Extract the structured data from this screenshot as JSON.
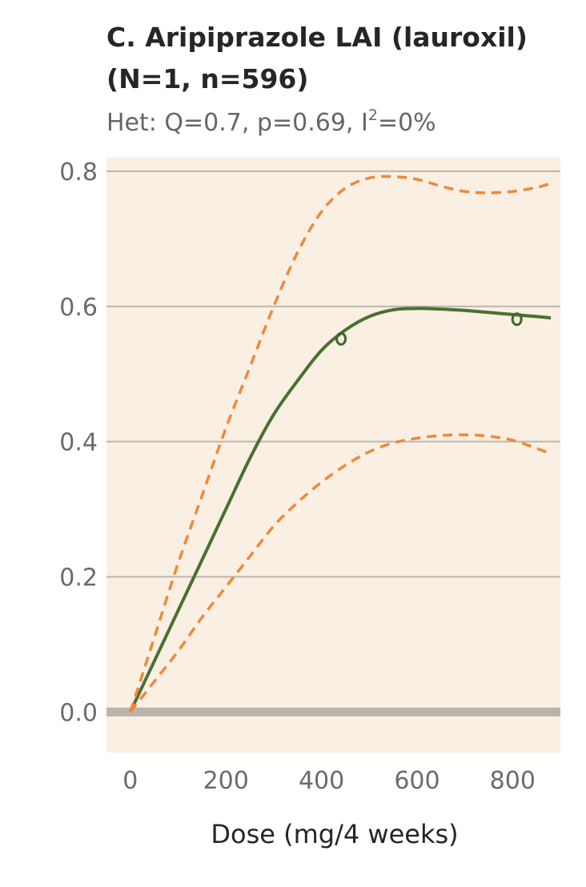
{
  "chart_data": {
    "type": "line",
    "title_line1": "C. Aripiprazole LAI (lauroxil)",
    "title_line2": "(N=1, n=596)",
    "subtitle_prefix": "Het: Q=0.7, p=0.69, I",
    "subtitle_sup": "2",
    "subtitle_suffix": "=0%",
    "xlabel": "Dose (mg/4 weeks)",
    "ylabel": "",
    "xlim": [
      -50,
      900
    ],
    "ylim": [
      -0.06,
      0.82
    ],
    "xticks": [
      0,
      200,
      400,
      600,
      800
    ],
    "yticks": [
      0.0,
      0.2,
      0.4,
      0.6,
      0.8
    ],
    "ytick_labels": [
      "0.0",
      "0.2",
      "0.4",
      "0.6",
      "0.8"
    ],
    "grid": true,
    "colors": {
      "background": "#f9efe3",
      "grid": "#bdb6ad",
      "zero_line": "#bab4ac",
      "estimate": "#4a7030",
      "ci": "#f0883a",
      "points": "#3e6a2c"
    },
    "series": [
      {
        "style": "solid",
        "x": [
          0,
          50,
          100,
          150,
          200,
          250,
          300,
          350,
          400,
          450,
          500,
          550,
          600,
          650,
          700,
          750,
          800,
          850,
          880
        ],
        "y": [
          0.0,
          0.075,
          0.15,
          0.225,
          0.3,
          0.375,
          0.44,
          0.49,
          0.535,
          0.565,
          0.585,
          0.595,
          0.597,
          0.596,
          0.594,
          0.591,
          0.588,
          0.585,
          0.583
        ]
      },
      {
        "style": "dashed",
        "x": [
          0,
          50,
          100,
          150,
          200,
          250,
          300,
          350,
          400,
          450,
          500,
          550,
          600,
          650,
          700,
          750,
          800,
          850,
          880
        ],
        "y": [
          0.0,
          0.11,
          0.22,
          0.32,
          0.42,
          0.51,
          0.6,
          0.68,
          0.74,
          0.775,
          0.79,
          0.792,
          0.788,
          0.778,
          0.77,
          0.768,
          0.77,
          0.776,
          0.782
        ]
      },
      {
        "style": "dashed",
        "x": [
          0,
          50,
          100,
          150,
          200,
          250,
          300,
          350,
          400,
          450,
          500,
          550,
          600,
          650,
          700,
          750,
          800,
          850,
          880
        ],
        "y": [
          0.0,
          0.045,
          0.09,
          0.14,
          0.185,
          0.23,
          0.275,
          0.31,
          0.34,
          0.365,
          0.385,
          0.398,
          0.405,
          0.409,
          0.41,
          0.408,
          0.402,
          0.39,
          0.382
        ]
      }
    ],
    "points": [
      {
        "x": 441,
        "y": 0.552
      },
      {
        "x": 809,
        "y": 0.581
      }
    ]
  }
}
